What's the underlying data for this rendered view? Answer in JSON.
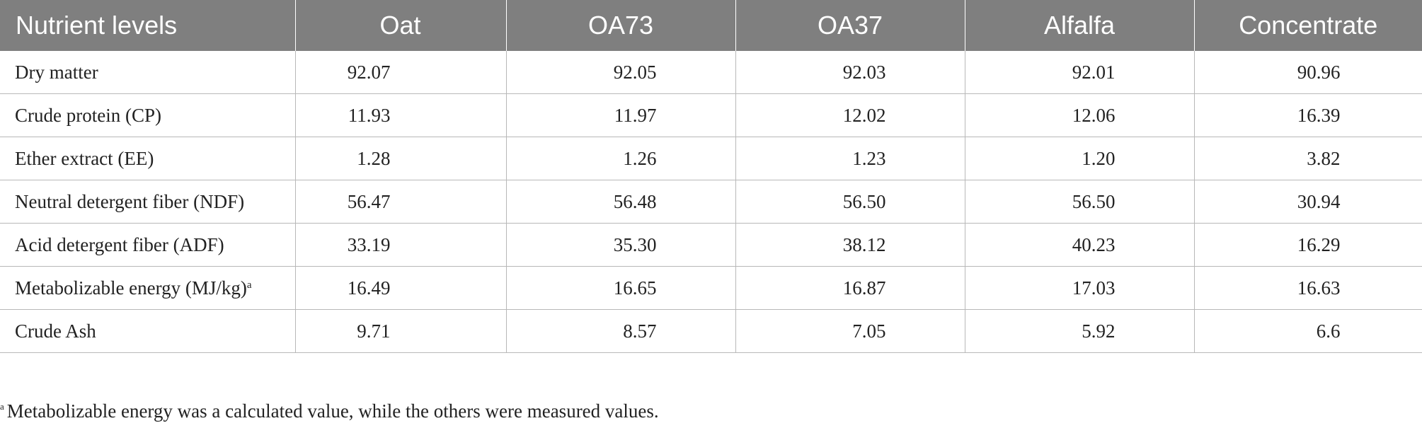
{
  "table": {
    "columns": [
      "Nutrient levels",
      "Oat",
      "OA73",
      "OA37",
      "Alfalfa",
      "Concentrate"
    ],
    "rows": [
      {
        "label": "Dry matter",
        "values": [
          "92.07",
          "92.05",
          "92.03",
          "92.01",
          "90.96"
        ]
      },
      {
        "label": "Crude protein (CP)",
        "values": [
          "11.93",
          "11.97",
          "12.02",
          "12.06",
          "16.39"
        ]
      },
      {
        "label": "Ether extract (EE)",
        "values": [
          "1.28",
          "1.26",
          "1.23",
          "1.20",
          "3.82"
        ]
      },
      {
        "label": "Neutral detergent fiber (NDF)",
        "values": [
          "56.47",
          "56.48",
          "56.50",
          "56.50",
          "30.94"
        ]
      },
      {
        "label": "Acid detergent fiber (ADF)",
        "values": [
          "33.19",
          "35.30",
          "38.12",
          "40.23",
          "16.29"
        ]
      },
      {
        "label": "Metabolizable energy (MJ/kg)",
        "label_sup": "a",
        "values": [
          "16.49",
          "16.65",
          "16.87",
          "17.03",
          "16.63"
        ]
      },
      {
        "label": "Crude Ash",
        "values": [
          "9.71",
          "8.57",
          "7.05",
          "5.92",
          "6.6"
        ]
      }
    ]
  },
  "footnote": {
    "marker": "a",
    "text": "Metabolizable energy was a calculated value, while the others were measured values."
  }
}
